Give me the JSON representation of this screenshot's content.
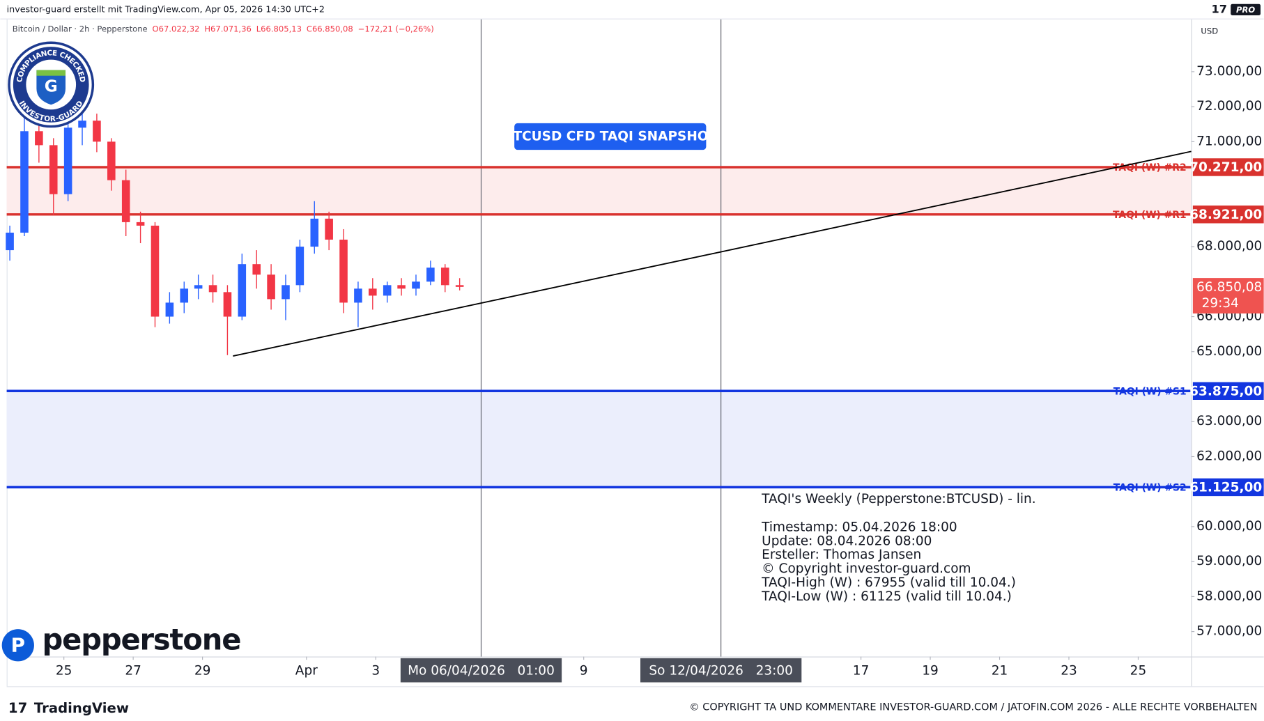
{
  "header": {
    "credit": "investor-guard erstellt mit TradingView.com, Apr 05, 2026 14:30 UTC+2",
    "badge": "PRO"
  },
  "chart_data": {
    "type": "candlestick",
    "legend": {
      "symbol": "Bitcoin / Dollar · 2h · Pepperstone",
      "open": "O67.022,32",
      "high": "H67.071,36",
      "low": "L66.805,13",
      "close": "C66.850,08",
      "change": "−172,21 (−0,26%)"
    },
    "y_unit": "USD",
    "xlim": [
      23.35,
      57.53
    ],
    "xticks": [
      {
        "value": 25,
        "label": "25"
      },
      {
        "value": 27,
        "label": "27"
      },
      {
        "value": 29,
        "label": "29"
      },
      {
        "value": 32,
        "label": "Apr"
      },
      {
        "value": 34,
        "label": "3"
      },
      {
        "value": 37.04,
        "label": "Mo 06/04/2026   01:00",
        "highlight": true
      },
      {
        "value": 40,
        "label": "9"
      },
      {
        "value": 43.96,
        "label": "So 12/04/2026   23:00",
        "highlight": true
      },
      {
        "value": 48,
        "label": "17"
      },
      {
        "value": 50,
        "label": "19"
      },
      {
        "value": 52,
        "label": "21"
      },
      {
        "value": 54,
        "label": "23"
      },
      {
        "value": 56,
        "label": "25"
      }
    ],
    "ylim": [
      56286,
      74496
    ],
    "yticks": [
      {
        "value": 73000,
        "label": "73.000,00"
      },
      {
        "value": 72000,
        "label": "72.000,00"
      },
      {
        "value": 71000,
        "label": "71.000,00"
      },
      {
        "value": 68000,
        "label": "68.000,00"
      },
      {
        "value": 66000,
        "label": "66.000,00"
      },
      {
        "value": 65000,
        "label": "65.000,00"
      },
      {
        "value": 63000,
        "label": "63.000,00"
      },
      {
        "value": 62000,
        "label": "62.000,00"
      },
      {
        "value": 60000,
        "label": "60.000,00"
      },
      {
        "value": 59000,
        "label": "59.000,00"
      },
      {
        "value": 58000,
        "label": "58.000,00"
      },
      {
        "value": 57000,
        "label": "57.000,00"
      }
    ],
    "up_color": "#2962ff",
    "down_color": "#f23645",
    "x": [
      23.44,
      23.86,
      24.28,
      24.7,
      25.12,
      25.53,
      25.95,
      26.37,
      26.79,
      27.21,
      27.63,
      28.05,
      28.47,
      28.88,
      29.3,
      29.72,
      30.14,
      30.56,
      30.98,
      31.4,
      31.81,
      32.23,
      32.65,
      33.07,
      33.49,
      33.91,
      34.33,
      34.74,
      35.16,
      35.58,
      36.0,
      36.42
    ],
    "open": [
      67900,
      68400,
      71300,
      70900,
      69500,
      71400,
      71600,
      71000,
      69900,
      68700,
      68600,
      66000,
      66400,
      66800,
      66900,
      66700,
      66000,
      67500,
      67200,
      66500,
      66900,
      68000,
      68800,
      68200,
      66400,
      66800,
      66600,
      66900,
      66800,
      67000,
      67400,
      66900
    ],
    "high": [
      68600,
      71900,
      71700,
      71100,
      71700,
      72000,
      71800,
      71100,
      70200,
      69000,
      68700,
      66700,
      67000,
      67200,
      67200,
      66900,
      67800,
      67900,
      67500,
      67200,
      68200,
      69300,
      69000,
      68500,
      67000,
      67100,
      67000,
      67100,
      67200,
      67600,
      67500,
      67100
    ],
    "low": [
      67600,
      68300,
      70400,
      68900,
      69300,
      70900,
      70700,
      69600,
      68300,
      68100,
      65700,
      65800,
      66100,
      66500,
      66400,
      64900,
      65900,
      66800,
      66200,
      65900,
      66700,
      67800,
      67900,
      66100,
      65700,
      66200,
      66400,
      66600,
      66600,
      66900,
      66700,
      66750
    ],
    "close": [
      68400,
      71300,
      70900,
      69500,
      71400,
      71600,
      71000,
      69900,
      68700,
      68600,
      66000,
      66400,
      66800,
      66900,
      66700,
      66000,
      67500,
      67200,
      66500,
      66900,
      68000,
      68800,
      68200,
      66400,
      66800,
      66600,
      66900,
      66800,
      67000,
      67400,
      66900,
      66850
    ],
    "resistance": {
      "color": "#d9322e",
      "fill": "#fdecec",
      "levels": [
        {
          "name": "TAQI (W) #R2",
          "value": 70271,
          "label": "70.271,00"
        },
        {
          "name": "TAQI (W) #R1",
          "value": 68921,
          "label": "68.921,00"
        }
      ]
    },
    "support": {
      "color": "#1336e0",
      "fill": "#ebeefc",
      "levels": [
        {
          "name": "TAQI (W) #S1",
          "value": 63875,
          "label": "63.875,00"
        },
        {
          "name": "TAQI (W) #S2",
          "value": 61125,
          "label": "61.125,00"
        }
      ]
    },
    "trendline": {
      "x": [
        29.88,
        57.53
      ],
      "y": [
        64874,
        70721
      ],
      "color": "#000000"
    },
    "vlines": [
      37.04,
      43.96
    ],
    "last_price": {
      "value": 66850.08,
      "label": "66.850,08",
      "countdown": "29:34",
      "color": "#ef5350"
    },
    "annotation": "BTCUSD CFD TAQI SNAPSHOT",
    "info": [
      "TAQI's Weekly (Pepperstone:BTCUSD) - lin.",
      "Timestamp: 05.04.2026 18:00",
      "Update: 08.04.2026 08:00",
      "Ersteller: Thomas Jansen",
      "© Copyright investor-guard.com",
      "TAQI-High (W) : 67955 (valid till 10.04.)",
      "TAQI-Low (W) : 61125 (valid till 10.04.)"
    ]
  },
  "logos": {
    "seal_top": "COMPLIANCE CHECKED",
    "seal_bottom": "INVESTOR-GUARD",
    "seal_letter": "G",
    "broker": "pepperstone",
    "platform": "TradingView"
  },
  "footer": "© COPYRIGHT TA UND KOMMENTARE INVESTOR-GUARD.COM / JATOFIN.COM 2026 - ALLE RECHTE VORBEHALTEN"
}
